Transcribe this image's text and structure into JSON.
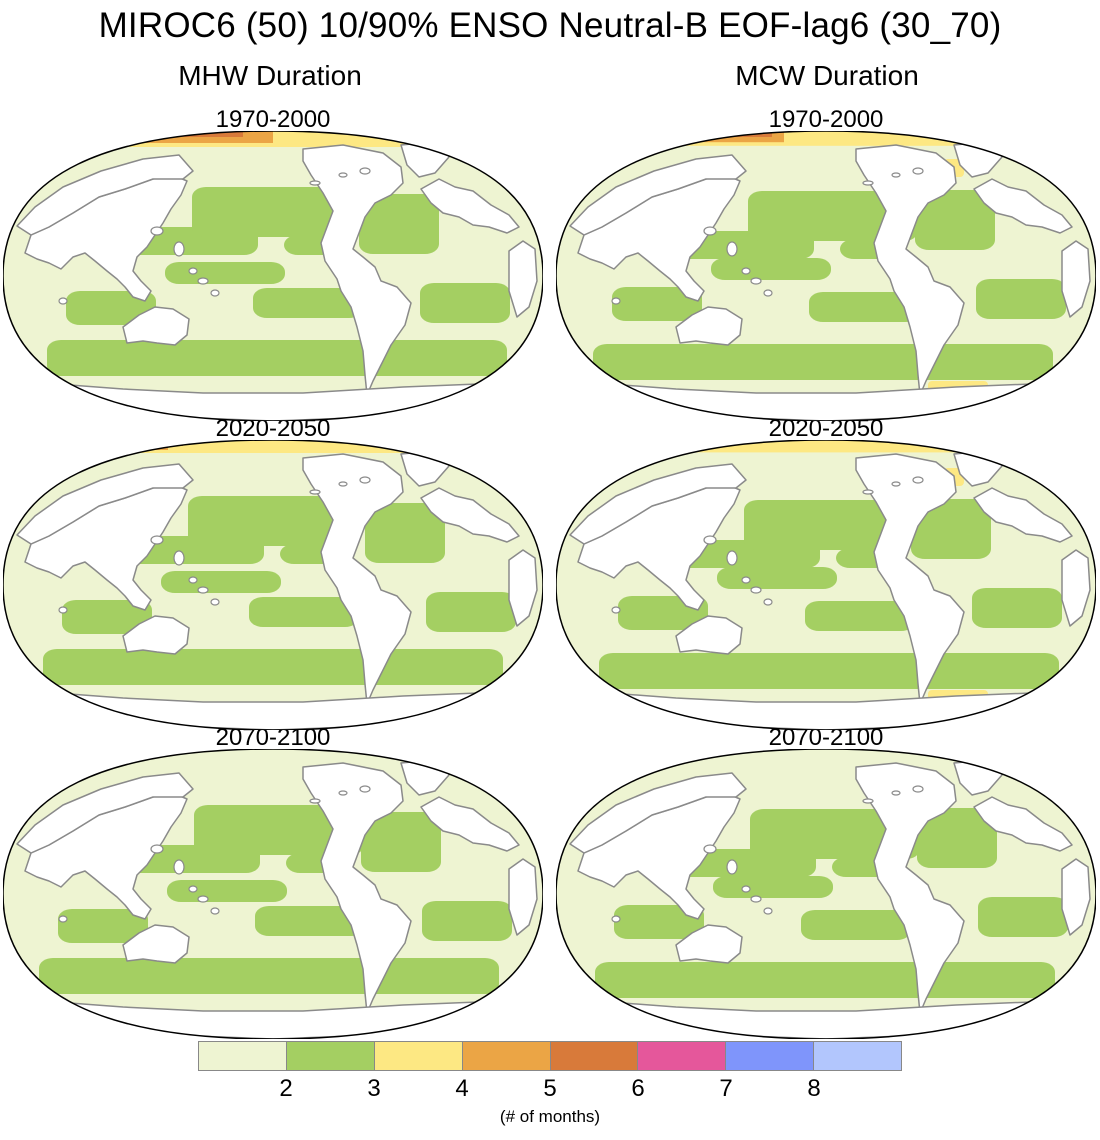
{
  "figure": {
    "title": "MIROC6 (50) 10/90% ENSO Neutral-B EOF-lag6 (30_70)",
    "columns": [
      {
        "title": "MHW Duration",
        "panels": [
          "1970-2000",
          "2020-2050",
          "2070-2100"
        ]
      },
      {
        "title": "MCW Duration",
        "panels": [
          "1970-2000",
          "2020-2050",
          "2070-2100"
        ]
      }
    ]
  },
  "colorbar": {
    "colors": [
      "#eef4d2",
      "#a4cf62",
      "#fde883",
      "#eba545",
      "#d87a3a",
      "#e5579b",
      "#7f95fb",
      "#b2c6fd"
    ],
    "ticks": [
      "2",
      "3",
      "4",
      "5",
      "6",
      "7",
      "8"
    ],
    "label": "(# of months)"
  },
  "map_colors": {
    "ocean_low": "#eef4d2",
    "ocean_mid": "#a4cf62",
    "high_4": "#fde883",
    "high_5": "#eba545",
    "high_6": "#d87a3a",
    "land": "#ffffff",
    "coast": "#8a8a8a",
    "border": "#000000"
  }
}
